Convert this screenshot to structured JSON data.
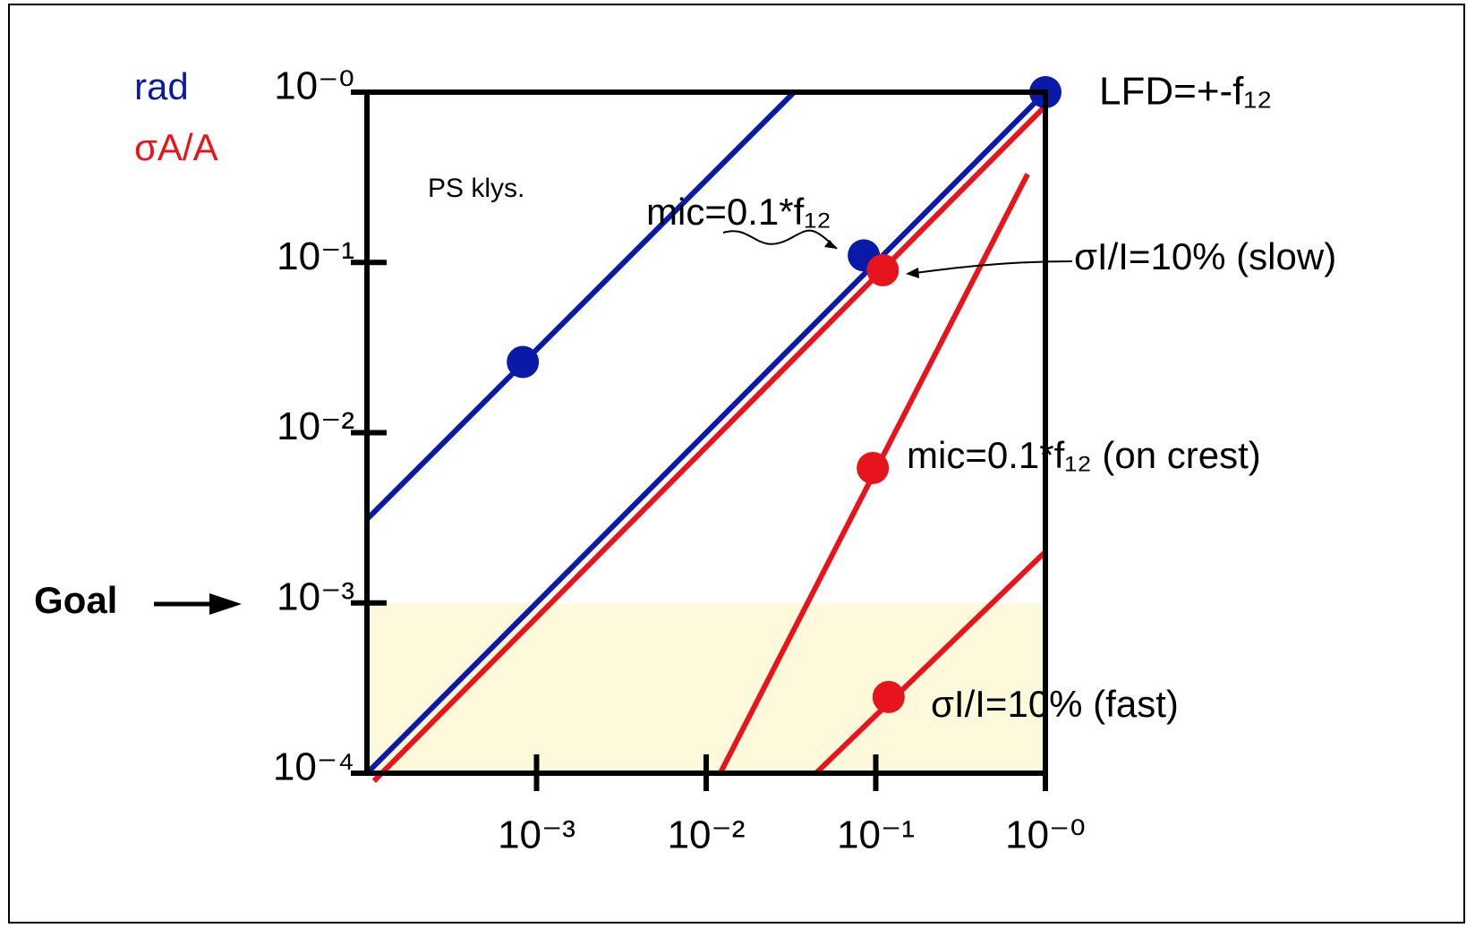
{
  "chart_data": {
    "type": "line",
    "log_x": true,
    "log_y": true,
    "xlim": [
      0.0001,
      1
    ],
    "ylim": [
      0.0001,
      1
    ],
    "xticks": [
      {
        "value": 0.001,
        "label": "10⁻³"
      },
      {
        "value": 0.01,
        "label": "10⁻²"
      },
      {
        "value": 0.1,
        "label": "10⁻¹"
      },
      {
        "value": 1,
        "label": "10⁻⁰"
      }
    ],
    "yticks": [
      {
        "value": 0.0001,
        "label": "10⁻⁴"
      },
      {
        "value": 0.001,
        "label": "10⁻³"
      },
      {
        "value": 0.01,
        "label": "10⁻²"
      },
      {
        "value": 0.1,
        "label": "10⁻¹"
      },
      {
        "value": 1,
        "label": "10⁻⁰"
      }
    ],
    "legend": [
      {
        "name": "rad",
        "color": "#0a1aa8"
      },
      {
        "name": "σA/A",
        "color": "#e8141c"
      }
    ],
    "goal": {
      "label": "Goal",
      "value": 0.001,
      "color": "#fdfadc"
    },
    "series": [
      {
        "color": "#0a1aa8",
        "x": [
          0.0001,
          0.033
        ],
        "values": [
          0.0031,
          1
        ]
      },
      {
        "color": "#0a1aa8",
        "x": [
          0.0001,
          1
        ],
        "values": [
          0.0001,
          1
        ]
      },
      {
        "color": "#e8141c",
        "x": [
          0.00011,
          1
        ],
        "values": [
          9e-05,
          0.83
        ]
      },
      {
        "color": "#e8141c",
        "x": [
          0.0121,
          0.785
        ],
        "values": [
          0.0001,
          0.33
        ]
      },
      {
        "color": "#e8141c",
        "x": [
          0.0444,
          1
        ],
        "values": [
          0.0001,
          0.002
        ]
      }
    ],
    "markers": [
      {
        "x": 0.00083,
        "y": 0.026,
        "color": "#0a1aa8"
      },
      {
        "x": 0.085,
        "y": 0.11,
        "color": "#0a1aa8"
      },
      {
        "x": 1,
        "y": 1,
        "color": "#0a1aa8"
      },
      {
        "x": 0.11,
        "y": 0.09,
        "color": "#e8141c"
      },
      {
        "x": 0.096,
        "y": 0.0062,
        "color": "#e8141c"
      },
      {
        "x": 0.119,
        "y": 0.00028,
        "color": "#e8141c"
      }
    ],
    "annotations": [
      "LFD=+-f₁₂",
      "PS klys.",
      "mic=0.1*f₁₂",
      "σI/I=10% (slow)",
      "mic=0.1*f₁₂ (on crest)",
      "σI/I=10% (fast)"
    ]
  }
}
